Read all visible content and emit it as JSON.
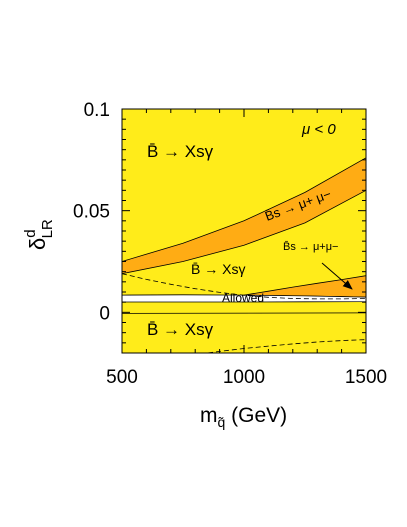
{
  "chart_data": {
    "type": "area",
    "xlabel": {
      "main": "m",
      "sub": "q̃",
      "unit": " (GeV)"
    },
    "ylabel": {
      "main": "δ",
      "sup": "d",
      "sub": "LR"
    },
    "xlim": [
      500,
      1500
    ],
    "ylim": [
      -0.02,
      0.1
    ],
    "xticks": [
      500,
      1000,
      1500
    ],
    "yticks": [
      0,
      0.05,
      0.1
    ],
    "xtick_labels": [
      "500",
      "1000",
      "1500"
    ],
    "ytick_labels": [
      "0",
      "0.05",
      "0.1"
    ],
    "grid": false,
    "colors": {
      "excluded_region": "#ffec1a",
      "bs_mumu_band": "#ffac14",
      "allowed": "#ffffff",
      "line": "#000000"
    },
    "annotations": {
      "mu": "μ < 0",
      "bxs_top": "B̄ → Xsγ",
      "bxs_mid": "B̄ → Xsγ",
      "bxs_bottom": "B̄ → Xsγ",
      "bs_mumu_upper": "B̄s → μ+ μ−",
      "bs_mumu_lower": "B̄s → μ+μ−",
      "allowed": "Allowed"
    },
    "series": [
      {
        "name": "B̄s → μ+ μ− (upper band)",
        "x": [
          500,
          750,
          1000,
          1250,
          1500
        ],
        "y_upper": [
          0.025,
          0.034,
          0.045,
          0.059,
          0.076
        ],
        "y_lower": [
          0.019,
          0.025,
          0.033,
          0.044,
          0.06
        ]
      },
      {
        "name": "B̄s → μ+μ− (lower band)",
        "x": [
          1000,
          1100,
          1200,
          1300,
          1400,
          1500
        ],
        "y_upper": [
          0.0085,
          0.0104,
          0.0124,
          0.0143,
          0.0161,
          0.018
        ],
        "y_lower": [
          0.0085,
          0.0083,
          0.0081,
          0.0079,
          0.0077,
          0.0075
        ]
      },
      {
        "name": "Allowed",
        "x": [
          500,
          750,
          1000,
          1250,
          1500
        ],
        "y_upper": [
          0.0085,
          0.0086,
          0.0085,
          0.0081,
          0.0075
        ],
        "y_lower": [
          0.0051,
          0.0051,
          0.0051,
          0.0052,
          0.0053
        ]
      },
      {
        "name": "B̄ → Xsγ boundary (lower)",
        "x": [
          500,
          1500
        ],
        "y": [
          -0.0005,
          -0.0003
        ]
      },
      {
        "name": "dashed (upper)",
        "x": [
          500,
          600,
          700,
          800,
          900,
          1000,
          1100,
          1200,
          1300,
          1400,
          1500
        ],
        "y": [
          0.019,
          0.0162,
          0.0138,
          0.0116,
          0.0098,
          0.0084,
          0.0074,
          0.0068,
          0.0066,
          0.0066,
          0.0068
        ]
      },
      {
        "name": "dashed (lower)",
        "x": [
          820,
          900,
          1000,
          1100,
          1200,
          1300,
          1400,
          1500
        ],
        "y": [
          -0.0205,
          -0.0192,
          -0.0178,
          -0.0166,
          -0.0155,
          -0.0146,
          -0.0139,
          -0.0134
        ]
      }
    ]
  }
}
